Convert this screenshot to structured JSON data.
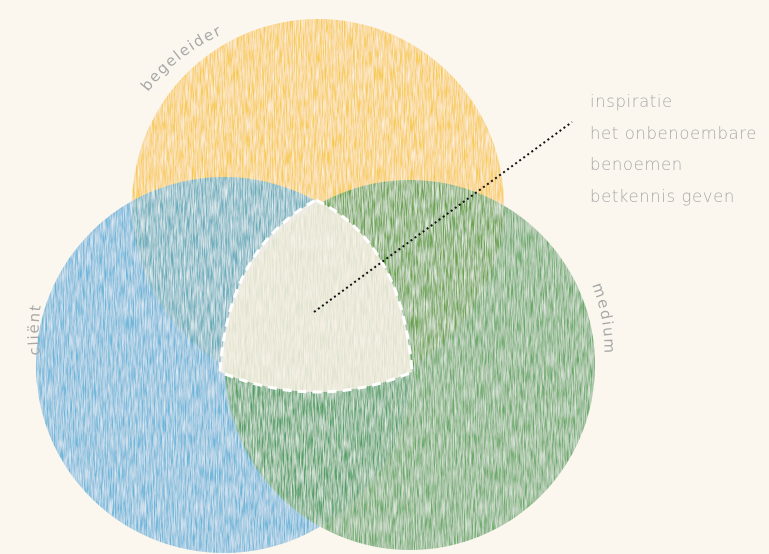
{
  "labels": {
    "top": "begeleider",
    "left": "cliënt",
    "right": "medium"
  },
  "legend": {
    "items": [
      "inspiratie",
      "het onbenoembare",
      "benoemen",
      "betkennis geven"
    ]
  },
  "colors": {
    "background": "#fbf7ee",
    "top_circle": "#f7c43a",
    "left_circle": "#4aa7d4",
    "right_circle": "#4a9a4c",
    "center_region": "#fdf3e6",
    "outline": "#ffffff",
    "pointer_line": "#111111",
    "label_text": "#a8a8a8"
  }
}
